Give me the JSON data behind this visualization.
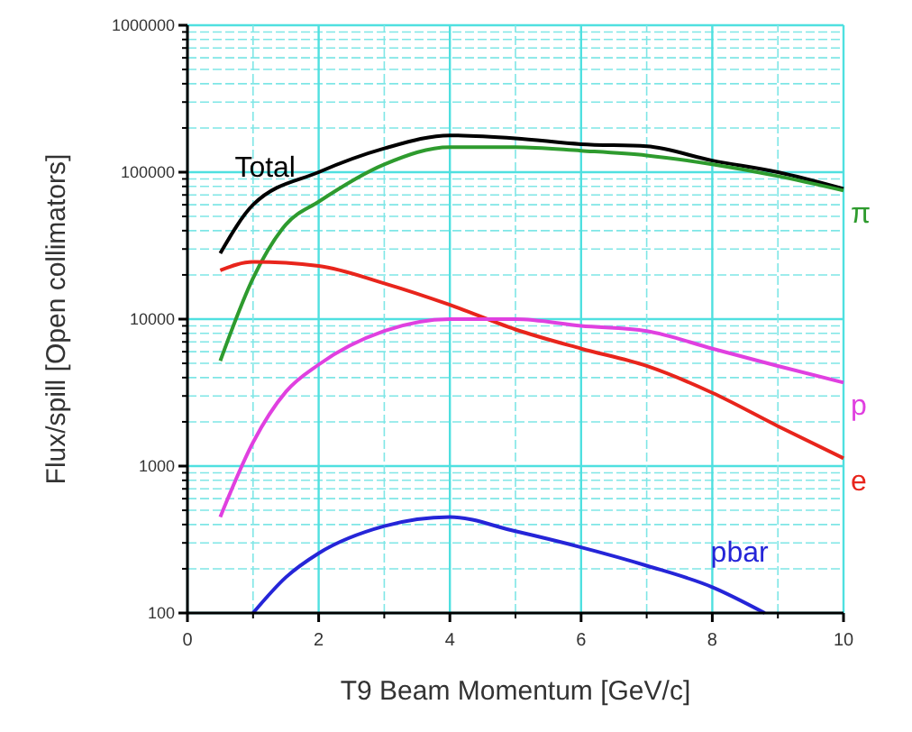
{
  "chart_data": {
    "type": "line",
    "xlabel": "T9 Beam Momentum [GeV/c]",
    "ylabel": "Flux/spill [Open collimators]",
    "log": "y",
    "grid": true,
    "xlim": [
      0,
      10
    ],
    "ylim": [
      100,
      1000000
    ],
    "xticks": [
      0,
      {
        "value": 1,
        "label": null
      },
      2,
      {
        "value": 3,
        "label": null
      },
      4,
      {
        "value": 5,
        "label": null
      },
      6,
      {
        "value": 7,
        "label": null
      },
      8,
      {
        "value": 9,
        "label": null
      },
      10
    ],
    "yticks": [
      100,
      {
        "value": 200,
        "label": null
      },
      {
        "value": 300,
        "label": null
      },
      {
        "value": 400,
        "label": null
      },
      {
        "value": 500,
        "label": null
      },
      {
        "value": 600,
        "label": null
      },
      {
        "value": 700,
        "label": null
      },
      {
        "value": 800,
        "label": null
      },
      {
        "value": 900,
        "label": null
      },
      1000,
      {
        "value": 2000,
        "label": null
      },
      {
        "value": 3000,
        "label": null
      },
      {
        "value": 4000,
        "label": null
      },
      {
        "value": 5000,
        "label": null
      },
      {
        "value": 6000,
        "label": null
      },
      {
        "value": 7000,
        "label": null
      },
      {
        "value": 8000,
        "label": null
      },
      {
        "value": 9000,
        "label": null
      },
      10000,
      {
        "value": 20000,
        "label": null
      },
      {
        "value": 30000,
        "label": null
      },
      {
        "value": 40000,
        "label": null
      },
      {
        "value": 50000,
        "label": null
      },
      {
        "value": 60000,
        "label": null
      },
      {
        "value": 70000,
        "label": null
      },
      {
        "value": 80000,
        "label": null
      },
      {
        "value": 90000,
        "label": null
      },
      100000,
      {
        "value": 200000,
        "label": null
      },
      {
        "value": 300000,
        "label": null
      },
      {
        "value": 400000,
        "label": null
      },
      {
        "value": 500000,
        "label": null
      },
      {
        "value": 600000,
        "label": null
      },
      {
        "value": 700000,
        "label": null
      },
      {
        "value": 800000,
        "label": null
      },
      {
        "value": 900000,
        "label": null
      },
      1000000
    ],
    "line_style": "solid",
    "marker": "none",
    "series": [
      {
        "name": "Total",
        "color": "#000000",
        "x": [
          0.5,
          1,
          2,
          3,
          4,
          5,
          6,
          7,
          8,
          9,
          10
        ],
        "values": [
          28000,
          60000,
          100000,
          145000,
          178000,
          170000,
          155000,
          150000,
          120000,
          100000,
          77000
        ]
      },
      {
        "name": "π",
        "color": "#2e9b2e",
        "x": [
          0.5,
          1,
          1.5,
          2,
          3,
          4,
          5,
          6,
          7,
          8,
          9,
          10
        ],
        "values": [
          5200,
          19000,
          44000,
          63000,
          113000,
          148000,
          148000,
          140000,
          130000,
          113000,
          94000,
          75000
        ]
      },
      {
        "name": "e",
        "color": "#e8251c",
        "x": [
          0.5,
          1,
          2,
          3,
          4,
          5,
          6,
          7,
          8,
          9,
          10
        ],
        "values": [
          21500,
          24500,
          23000,
          17500,
          12500,
          8500,
          6300,
          4800,
          3150,
          1870,
          1130
        ]
      },
      {
        "name": "p",
        "color": "#e040e0",
        "x": [
          0.5,
          1,
          1.5,
          2,
          3,
          4,
          5,
          6,
          7,
          8,
          9,
          10
        ],
        "values": [
          450,
          1450,
          3200,
          4900,
          8300,
          10000,
          10000,
          9000,
          8300,
          6300,
          4800,
          3700
        ]
      },
      {
        "name": "pbar",
        "color": "#2525d8",
        "x": [
          1,
          1.5,
          2,
          3,
          4,
          5,
          6,
          7,
          8,
          8.8
        ],
        "values": [
          100,
          175,
          255,
          390,
          450,
          360,
          280,
          210,
          150,
          100
        ]
      }
    ]
  }
}
